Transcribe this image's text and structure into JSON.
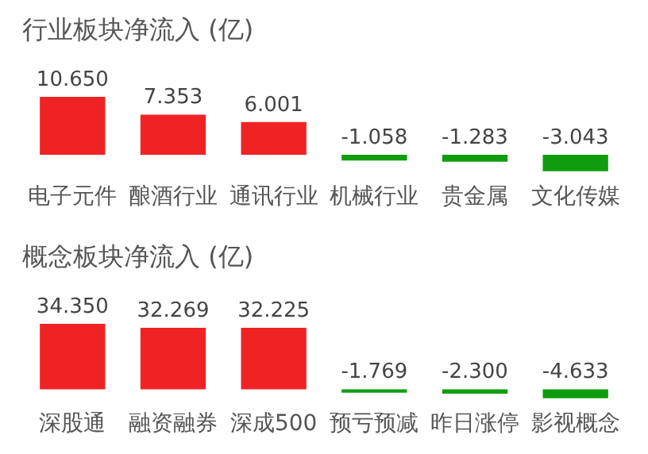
{
  "chart_data": [
    {
      "type": "bar",
      "title": "行业板块净流入 (亿)",
      "categories": [
        "电子元件",
        "酿酒行业",
        "通讯行业",
        "机械行业",
        "贵金属",
        "文化传媒"
      ],
      "values": [
        10.65,
        7.353,
        6.001,
        -1.058,
        -1.283,
        -3.043
      ],
      "colors": [
        "#f02324",
        "#f02324",
        "#f02324",
        "#0f9d0f",
        "#0f9d0f",
        "#0f9d0f"
      ],
      "value_labels": [
        "10.650",
        "7.353",
        "6.001",
        "-1.058",
        "-1.283",
        "-3.043"
      ],
      "data_labels": true,
      "grid": false,
      "legend": false
    },
    {
      "type": "bar",
      "title": "概念板块净流入 (亿)",
      "categories": [
        "深股通",
        "融资融券",
        "深成500",
        "预亏预减",
        "昨日涨停",
        "影视概念"
      ],
      "values": [
        34.35,
        32.269,
        32.225,
        -1.769,
        -2.3,
        -4.633
      ],
      "colors": [
        "#f02324",
        "#f02324",
        "#f02324",
        "#0f9d0f",
        "#0f9d0f",
        "#0f9d0f"
      ],
      "value_labels": [
        "34.350",
        "32.269",
        "32.225",
        "-1.769",
        "-2.300",
        "-4.633"
      ],
      "data_labels": true,
      "grid": false,
      "legend": false
    }
  ]
}
